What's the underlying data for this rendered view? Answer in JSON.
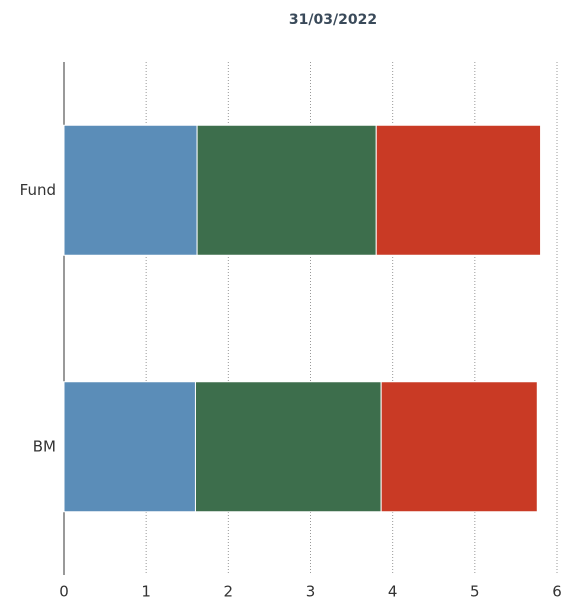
{
  "chart_data": {
    "type": "bar",
    "orientation": "horizontal",
    "stacked": true,
    "title": "31/03/2022",
    "categories": [
      "Fund",
      "BM"
    ],
    "series": [
      {
        "color": "#5b8db8",
        "values": [
          1.62,
          1.6
        ]
      },
      {
        "color": "#3d6e4c",
        "values": [
          2.18,
          2.26
        ]
      },
      {
        "color": "#c93a25",
        "values": [
          2.0,
          1.9
        ]
      }
    ],
    "xlim": [
      0,
      6
    ],
    "xticks": [
      0,
      1,
      2,
      3,
      4,
      5,
      6
    ],
    "grid": true
  }
}
